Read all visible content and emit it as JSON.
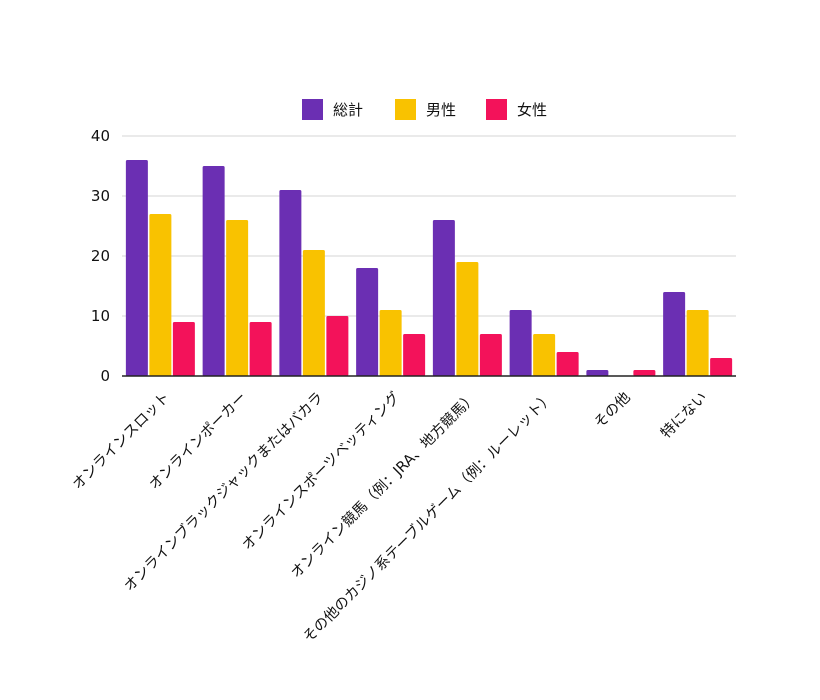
{
  "chart_data": {
    "type": "bar",
    "categories": [
      "オンラインスロット",
      "オンラインポーカー",
      "オンラインブラックジャックまたはバカラ",
      "オンラインスポーツベッティング",
      "オンライン競馬（例：JRA、地方競馬）",
      "その他のカジノ系テーブルゲーム（例：ルーレット）",
      "その他",
      "特にない"
    ],
    "series": [
      {
        "name": "総計",
        "color": "#6b2fb3",
        "values": [
          36,
          35,
          31,
          18,
          26,
          11,
          1,
          14
        ]
      },
      {
        "name": "男性",
        "color": "#f9c200",
        "values": [
          27,
          26,
          21,
          11,
          19,
          7,
          0,
          11
        ]
      },
      {
        "name": "女性",
        "color": "#f3125a",
        "values": [
          9,
          9,
          10,
          7,
          7,
          4,
          1,
          3
        ]
      }
    ],
    "ylim": [
      0,
      40
    ],
    "yticks": [
      0,
      10,
      20,
      30,
      40
    ],
    "grid": true,
    "legend_position": "top-center"
  }
}
